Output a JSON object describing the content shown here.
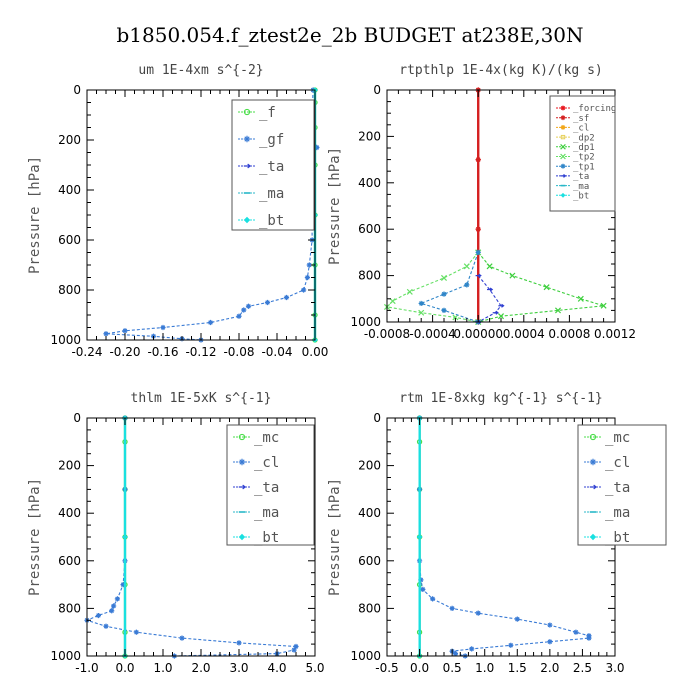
{
  "figure_title": "b1850.054.f_ztest2e_2b  BUDGET at238E,30N",
  "chart_data": [
    {
      "type": "line",
      "title": "um   1E-4xm s^{-2}",
      "ylabel": "Pressure [hPa]",
      "xlim": [
        -0.24,
        0.0
      ],
      "ylim": [
        1000,
        0
      ],
      "x_ticks": [
        -0.24,
        -0.2,
        -0.16,
        -0.12,
        -0.08,
        -0.04,
        0.0
      ],
      "x_tick_labels": [
        "-0.24",
        "-0.20",
        "-0.16",
        "-0.12",
        "-0.08",
        "-0.04",
        "0.00"
      ],
      "y_ticks": [
        0,
        200,
        400,
        600,
        800,
        1000
      ],
      "y_tick_labels": [
        "0",
        "200",
        "400",
        "600",
        "800",
        "1000"
      ],
      "legend_placement": "top-right",
      "legend_font_size": 14,
      "series": [
        {
          "name": "_f",
          "color": "#4ade4a",
          "marker": "circle",
          "points": [
            [
              0,
              0
            ],
            [
              0,
              50
            ],
            [
              0,
              150
            ],
            [
              0,
              300
            ],
            [
              0,
              500
            ],
            [
              0,
              700
            ],
            [
              0,
              900
            ],
            [
              0,
              1000
            ]
          ]
        },
        {
          "name": "_gf",
          "color": "#3a7bd5",
          "marker": "star",
          "points": [
            [
              -0.002,
              0
            ],
            [
              -0.003,
              100
            ],
            [
              -0.005,
              165
            ],
            [
              0.002,
              230
            ],
            [
              -0.002,
              260
            ],
            [
              -0.003,
              400
            ],
            [
              -0.003,
              600
            ],
            [
              -0.006,
              700
            ],
            [
              -0.008,
              750
            ],
            [
              -0.012,
              800
            ],
            [
              -0.03,
              830
            ],
            [
              -0.05,
              850
            ],
            [
              -0.07,
              865
            ],
            [
              -0.075,
              880
            ],
            [
              -0.08,
              905
            ],
            [
              -0.11,
              930
            ],
            [
              -0.16,
              950
            ],
            [
              -0.2,
              963
            ],
            [
              -0.22,
              975
            ],
            [
              -0.17,
              985
            ],
            [
              -0.14,
              995
            ],
            [
              -0.12,
              1000
            ]
          ]
        },
        {
          "name": "_ta",
          "color": "#2f3fd1",
          "marker": "arrow",
          "points": []
        },
        {
          "name": "_ma",
          "color": "#28b7c8",
          "marker": "dash",
          "points": [
            [
              0,
              0
            ],
            [
              0,
              500
            ],
            [
              0,
              1000
            ]
          ]
        },
        {
          "name": "_bt",
          "color": "#19e0e0",
          "marker": "diamond",
          "points": [
            [
              0,
              0
            ],
            [
              0,
              500
            ],
            [
              0,
              1000
            ]
          ]
        }
      ]
    },
    {
      "type": "line",
      "title": "rtpthlp   1E-4x(kg K)/(kg s)",
      "ylabel": "Pressure [hPa]",
      "xlim": [
        -0.0008,
        0.0012
      ],
      "ylim": [
        1000,
        0
      ],
      "x_ticks": [
        -0.0008,
        -0.0004,
        0.0,
        0.0004,
        0.0008,
        0.0012
      ],
      "x_tick_labels": [
        "-0.0008",
        "-0.0004",
        "0.00000",
        "0.0004",
        "0.0008",
        "0.0012"
      ],
      "y_ticks": [
        0,
        200,
        400,
        600,
        800,
        1000
      ],
      "y_tick_labels": [
        "0",
        "200",
        "400",
        "600",
        "800",
        "1000"
      ],
      "legend_placement": "top-right",
      "legend_font_size": 9,
      "series": [
        {
          "name": "_forcing",
          "color": "#e8161d",
          "marker": "star",
          "points": [
            [
              0,
              0
            ],
            [
              0,
              300
            ],
            [
              0,
              600
            ],
            [
              0,
              1000
            ]
          ]
        },
        {
          "name": "_sf",
          "color": "#d42020",
          "marker": "star",
          "points": [
            [
              0,
              0
            ],
            [
              0,
              300
            ],
            [
              0,
              600
            ],
            [
              0,
              1000
            ]
          ]
        },
        {
          "name": "_cl",
          "color": "#f2a71a",
          "marker": "star",
          "points": []
        },
        {
          "name": "_dp2",
          "color": "#e6d05a",
          "marker": "square",
          "points": []
        },
        {
          "name": "_dp1",
          "color": "#3ecf3e",
          "marker": "cross",
          "points": [
            [
              0,
              700
            ],
            [
              0.0001,
              760
            ],
            [
              0.0003,
              800
            ],
            [
              0.0006,
              850
            ],
            [
              0.0009,
              900
            ],
            [
              0.0011,
              930
            ],
            [
              0.0007,
              950
            ],
            [
              0.0002,
              975
            ],
            [
              0,
              1000
            ]
          ]
        },
        {
          "name": "_tp2",
          "color": "#66e066",
          "marker": "cross",
          "points": [
            [
              0,
              700
            ],
            [
              -0.0001,
              760
            ],
            [
              -0.0003,
              810
            ],
            [
              -0.0006,
              870
            ],
            [
              -0.00075,
              910
            ],
            [
              -0.0008,
              935
            ],
            [
              -0.0005,
              960
            ],
            [
              -0.0002,
              980
            ],
            [
              0,
              1000
            ]
          ]
        },
        {
          "name": "_tp1",
          "color": "#2e85c8",
          "marker": "star",
          "points": [
            [
              0,
              700
            ],
            [
              -0.0001,
              840
            ],
            [
              -0.0003,
              880
            ],
            [
              -0.0005,
              920
            ],
            [
              -0.0003,
              950
            ],
            [
              0,
              1000
            ]
          ]
        },
        {
          "name": "_ta",
          "color": "#2f3fd1",
          "marker": "arrow",
          "points": [
            [
              0,
              800
            ],
            [
              0.0001,
              860
            ],
            [
              0.0002,
              930
            ],
            [
              0.00015,
              960
            ],
            [
              0,
              1000
            ]
          ]
        },
        {
          "name": "_ma",
          "color": "#28b7c8",
          "marker": "dash",
          "points": []
        },
        {
          "name": "_bt",
          "color": "#19e0e0",
          "marker": "diamond",
          "points": []
        }
      ]
    },
    {
      "type": "line",
      "title": "thlm   1E-5xK s^{-1}",
      "ylabel": "Pressure [hPa]",
      "xlim": [
        -1.0,
        5.0
      ],
      "ylim": [
        1000,
        0
      ],
      "x_ticks": [
        -1.0,
        0.0,
        1.0,
        2.0,
        3.0,
        4.0,
        5.0
      ],
      "x_tick_labels": [
        "-1.0",
        "0.0",
        "1.0",
        "2.0",
        "3.0",
        "4.0",
        "5.0"
      ],
      "y_ticks": [
        0,
        200,
        400,
        600,
        800,
        1000
      ],
      "y_tick_labels": [
        "0",
        "200",
        "400",
        "600",
        "800",
        "1000"
      ],
      "legend_placement": "top-right",
      "legend_font_size": 14,
      "series": [
        {
          "name": "_mc",
          "color": "#4ade4a",
          "marker": "circle",
          "points": [
            [
              0,
              0
            ],
            [
              0,
              100
            ],
            [
              0,
              300
            ],
            [
              0,
              500
            ],
            [
              0,
              700
            ],
            [
              0,
              900
            ],
            [
              0,
              1000
            ]
          ]
        },
        {
          "name": "_cl",
          "color": "#3a7bd5",
          "marker": "star",
          "points": [
            [
              0,
              0
            ],
            [
              0,
              300
            ],
            [
              0,
              600
            ],
            [
              -0.05,
              700
            ],
            [
              -0.2,
              760
            ],
            [
              -0.3,
              790
            ],
            [
              -0.35,
              810
            ],
            [
              -0.7,
              830
            ],
            [
              -1.0,
              850
            ],
            [
              -0.5,
              875
            ],
            [
              0.3,
              900
            ],
            [
              1.5,
              925
            ],
            [
              3.0,
              945
            ],
            [
              4.5,
              960
            ],
            [
              4.45,
              975
            ],
            [
              4.0,
              990
            ],
            [
              1.3,
              1000
            ]
          ]
        },
        {
          "name": "_ta",
          "color": "#2f3fd1",
          "marker": "arrow",
          "points": []
        },
        {
          "name": "_ma",
          "color": "#28b7c8",
          "marker": "dash",
          "points": [
            [
              0,
              0
            ],
            [
              0,
              500
            ],
            [
              0,
              1000
            ]
          ]
        },
        {
          "name": "_bt",
          "color": "#19e0e0",
          "marker": "diamond",
          "points": [
            [
              0,
              0
            ],
            [
              0,
              500
            ],
            [
              0,
              1000
            ]
          ]
        }
      ]
    },
    {
      "type": "line",
      "title": "rtm   1E-8xkg kg^{-1} s^{-1}",
      "ylabel": "Pressure [hPa]",
      "xlim": [
        -0.5,
        3.0
      ],
      "ylim": [
        1000,
        0
      ],
      "x_ticks": [
        -0.5,
        0.0,
        0.5,
        1.0,
        1.5,
        2.0,
        2.5,
        3.0
      ],
      "x_tick_labels": [
        "-0.5",
        "0.0",
        "0.5",
        "1.0",
        "1.5",
        "2.0",
        "2.5",
        "3.0"
      ],
      "y_ticks": [
        0,
        200,
        400,
        600,
        800,
        1000
      ],
      "y_tick_labels": [
        "0",
        "200",
        "400",
        "600",
        "800",
        "1000"
      ],
      "legend_placement": "top-right",
      "legend_font_size": 14,
      "series": [
        {
          "name": "_mc",
          "color": "#4ade4a",
          "marker": "circle",
          "points": [
            [
              0,
              0
            ],
            [
              0,
              100
            ],
            [
              0,
              300
            ],
            [
              0,
              500
            ],
            [
              0,
              700
            ],
            [
              0,
              900
            ],
            [
              0,
              1000
            ]
          ]
        },
        {
          "name": "_cl",
          "color": "#3a7bd5",
          "marker": "star",
          "points": [
            [
              0,
              0
            ],
            [
              0,
              300
            ],
            [
              0,
              600
            ],
            [
              0.02,
              680
            ],
            [
              0.05,
              720
            ],
            [
              0.2,
              760
            ],
            [
              0.5,
              800
            ],
            [
              0.9,
              820
            ],
            [
              1.5,
              845
            ],
            [
              2.0,
              870
            ],
            [
              2.4,
              900
            ],
            [
              2.6,
              915
            ],
            [
              2.6,
              925
            ],
            [
              2.0,
              940
            ],
            [
              1.4,
              955
            ],
            [
              0.8,
              970
            ],
            [
              0.5,
              980
            ],
            [
              0.55,
              990
            ],
            [
              0.7,
              1000
            ]
          ]
        },
        {
          "name": "_ta",
          "color": "#2f3fd1",
          "marker": "arrow",
          "points": []
        },
        {
          "name": "_ma",
          "color": "#28b7c8",
          "marker": "dash",
          "points": [
            [
              0,
              0
            ],
            [
              0,
              500
            ],
            [
              0,
              1000
            ]
          ]
        },
        {
          "name": "_bt",
          "color": "#19e0e0",
          "marker": "diamond",
          "points": [
            [
              0,
              0
            ],
            [
              0,
              500
            ],
            [
              0,
              1000
            ]
          ]
        }
      ]
    }
  ]
}
